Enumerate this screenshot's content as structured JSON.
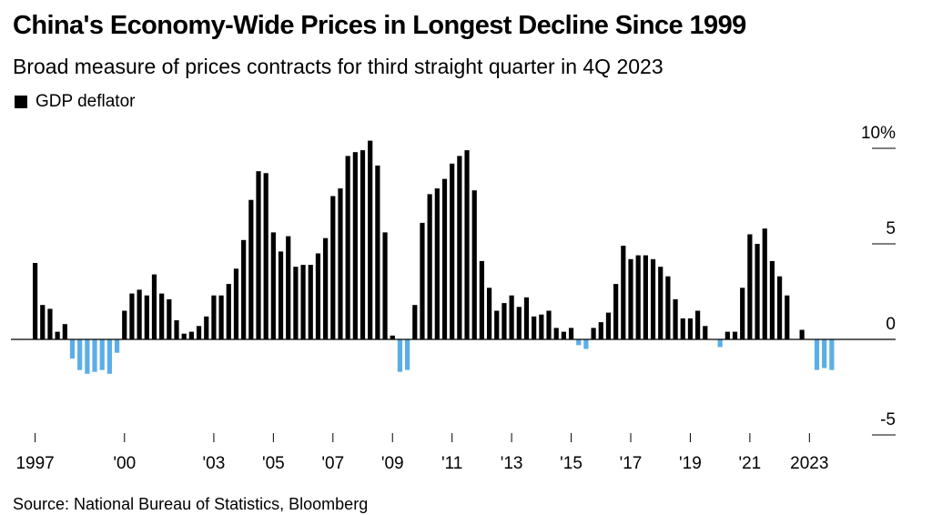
{
  "title": "China's Economy-Wide Prices in Longest Decline Since 1999",
  "subtitle": "Broad measure of prices contracts for third straight quarter in 4Q 2023",
  "legend": {
    "label": "GDP deflator"
  },
  "source": "Source: National Bureau of Statistics, Bloomberg",
  "colors": {
    "positive": "#000000",
    "negative": "#5aaee8",
    "axis": "#000000"
  },
  "chart_data": {
    "type": "bar",
    "title": "China's Economy-Wide Prices in Longest Decline Since 1999",
    "xlabel": "",
    "ylabel": "",
    "unit": "%",
    "ylim": [
      -5,
      10
    ],
    "y_ticks": [
      {
        "value": 10,
        "label": "10%"
      },
      {
        "value": 5,
        "label": "5"
      },
      {
        "value": 0,
        "label": "0"
      },
      {
        "value": -5,
        "label": "-5"
      }
    ],
    "x_start_year": 1997,
    "x_ticks": [
      {
        "year": 1997,
        "label": "1997"
      },
      {
        "year": 2000,
        "label": "'00"
      },
      {
        "year": 2003,
        "label": "'03"
      },
      {
        "year": 2005,
        "label": "'05"
      },
      {
        "year": 2007,
        "label": "'07"
      },
      {
        "year": 2009,
        "label": "'09"
      },
      {
        "year": 2011,
        "label": "'11"
      },
      {
        "year": 2013,
        "label": "'13"
      },
      {
        "year": 2015,
        "label": "'15"
      },
      {
        "year": 2017,
        "label": "'17"
      },
      {
        "year": 2019,
        "label": "'19"
      },
      {
        "year": 2021,
        "label": "'21"
      },
      {
        "year": 2023,
        "label": "2023"
      }
    ],
    "series": [
      {
        "name": "GDP deflator",
        "frequency": "quarterly",
        "start": "1997Q1",
        "end": "2023Q4",
        "values": [
          4.0,
          1.8,
          1.6,
          0.4,
          0.8,
          -1.0,
          -1.6,
          -1.8,
          -1.7,
          -1.6,
          -1.8,
          -0.7,
          1.5,
          2.4,
          2.6,
          2.3,
          3.4,
          2.4,
          2.1,
          1.0,
          0.3,
          0.4,
          0.7,
          1.2,
          2.3,
          2.3,
          2.9,
          3.7,
          5.2,
          7.3,
          8.8,
          8.7,
          5.6,
          4.6,
          5.4,
          3.8,
          3.9,
          3.9,
          4.5,
          5.3,
          7.5,
          7.9,
          9.6,
          9.8,
          9.9,
          10.4,
          9.1,
          5.6,
          0.2,
          -1.7,
          -1.6,
          1.8,
          6.1,
          7.6,
          7.9,
          8.4,
          9.2,
          9.6,
          9.9,
          7.8,
          4.1,
          2.7,
          1.5,
          1.9,
          2.3,
          1.7,
          2.2,
          1.2,
          1.3,
          1.5,
          0.6,
          0.4,
          0.6,
          -0.3,
          -0.5,
          0.6,
          0.9,
          1.4,
          2.9,
          4.9,
          4.2,
          4.4,
          4.4,
          4.2,
          3.8,
          3.3,
          2.1,
          1.1,
          1.1,
          1.5,
          0.7,
          0.0,
          -0.4,
          0.4,
          0.4,
          2.7,
          5.5,
          5.0,
          5.8,
          4.1,
          3.3,
          2.3,
          0.0,
          0.5,
          0.0,
          -1.6,
          -1.5,
          -1.6
        ]
      }
    ]
  }
}
